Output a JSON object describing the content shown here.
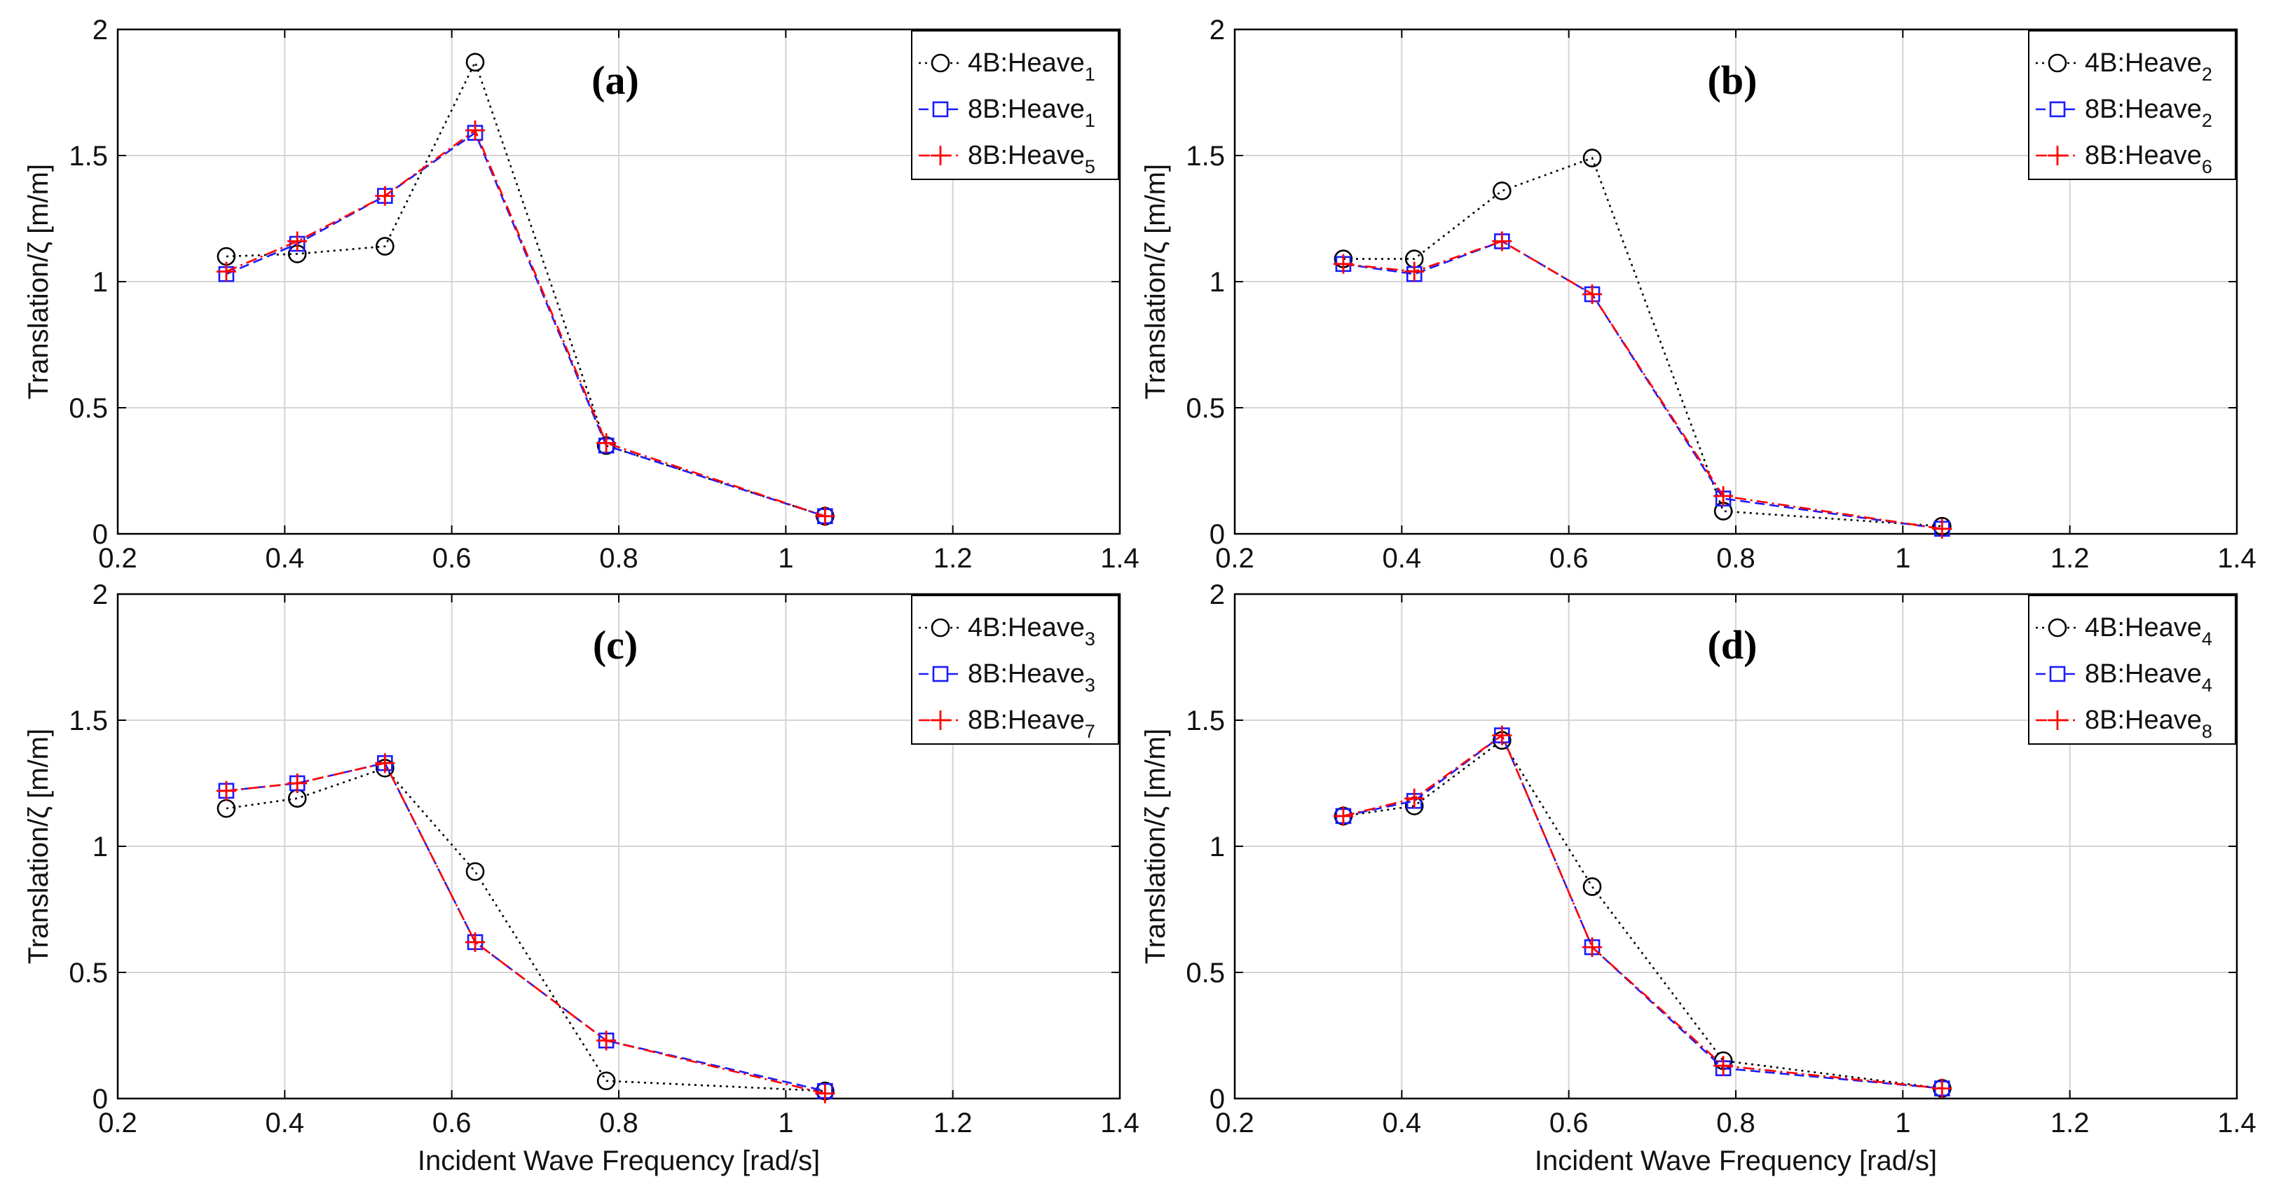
{
  "chart_data": [
    {
      "type": "line",
      "panel_label": "(a)",
      "xlabel": "",
      "ylabel": "Translation/ζ [m/m]",
      "xlim": [
        0.2,
        1.4
      ],
      "ylim": [
        0,
        2
      ],
      "xticks": [
        "0.2",
        "0.4",
        "0.6",
        "0.8",
        "1",
        "1.2",
        "1.4"
      ],
      "yticks": [
        "0",
        "0.5",
        "1",
        "1.5",
        "2"
      ],
      "grid": true,
      "legend_position": "top-right",
      "x": [
        0.33,
        0.415,
        0.52,
        0.628,
        0.785,
        1.047
      ],
      "series": [
        {
          "name": "4B:Heave",
          "sub": "1",
          "color": "#000000",
          "marker": "circle",
          "linestyle": "dotted",
          "values": [
            1.1,
            1.11,
            1.14,
            1.87,
            0.35,
            0.07
          ]
        },
        {
          "name": "8B:Heave",
          "sub": "1",
          "color": "#1a1aff",
          "marker": "square",
          "linestyle": "dashed",
          "values": [
            1.03,
            1.15,
            1.34,
            1.59,
            0.35,
            0.07
          ]
        },
        {
          "name": "8B:Heave",
          "sub": "5",
          "color": "#ff0000",
          "marker": "plus",
          "linestyle": "dashdot",
          "values": [
            1.04,
            1.16,
            1.34,
            1.6,
            0.36,
            0.07
          ]
        }
      ]
    },
    {
      "type": "line",
      "panel_label": "(b)",
      "xlabel": "",
      "ylabel": "Translation/ζ [m/m]",
      "xlim": [
        0.2,
        1.4
      ],
      "ylim": [
        0,
        2
      ],
      "xticks": [
        "0.2",
        "0.4",
        "0.6",
        "0.8",
        "1",
        "1.2",
        "1.4"
      ],
      "yticks": [
        "0",
        "0.5",
        "1",
        "1.5",
        "2"
      ],
      "grid": true,
      "legend_position": "top-right",
      "x": [
        0.33,
        0.415,
        0.52,
        0.628,
        0.785,
        1.047
      ],
      "series": [
        {
          "name": "4B:Heave",
          "sub": "2",
          "color": "#000000",
          "marker": "circle",
          "linestyle": "dotted",
          "values": [
            1.09,
            1.09,
            1.36,
            1.49,
            0.09,
            0.03
          ]
        },
        {
          "name": "8B:Heave",
          "sub": "2",
          "color": "#1a1aff",
          "marker": "square",
          "linestyle": "dashed",
          "values": [
            1.07,
            1.03,
            1.16,
            0.95,
            0.14,
            0.02
          ]
        },
        {
          "name": "8B:Heave",
          "sub": "6",
          "color": "#ff0000",
          "marker": "plus",
          "linestyle": "dashdot",
          "values": [
            1.07,
            1.04,
            1.16,
            0.95,
            0.15,
            0.02
          ]
        }
      ]
    },
    {
      "type": "line",
      "panel_label": "(c)",
      "xlabel": "Incident Wave Frequency [rad/s]",
      "ylabel": "Translation/ζ [m/m]",
      "xlim": [
        0.2,
        1.4
      ],
      "ylim": [
        0,
        2
      ],
      "xticks": [
        "0.2",
        "0.4",
        "0.6",
        "0.8",
        "1",
        "1.2",
        "1.4"
      ],
      "yticks": [
        "0",
        "0.5",
        "1",
        "1.5",
        "2"
      ],
      "grid": true,
      "legend_position": "top-right",
      "x": [
        0.33,
        0.415,
        0.52,
        0.628,
        0.785,
        1.047
      ],
      "series": [
        {
          "name": "4B:Heave",
          "sub": "3",
          "color": "#000000",
          "marker": "circle",
          "linestyle": "dotted",
          "values": [
            1.15,
            1.19,
            1.31,
            0.9,
            0.07,
            0.03
          ]
        },
        {
          "name": "8B:Heave",
          "sub": "3",
          "color": "#1a1aff",
          "marker": "square",
          "linestyle": "dashed",
          "values": [
            1.22,
            1.25,
            1.33,
            0.62,
            0.23,
            0.03
          ]
        },
        {
          "name": "8B:Heave",
          "sub": "7",
          "color": "#ff0000",
          "marker": "plus",
          "linestyle": "dashdot",
          "values": [
            1.22,
            1.25,
            1.33,
            0.62,
            0.23,
            0.02
          ]
        }
      ]
    },
    {
      "type": "line",
      "panel_label": "(d)",
      "xlabel": "Incident Wave Frequency [rad/s]",
      "ylabel": "Translation/ζ [m/m]",
      "xlim": [
        0.2,
        1.4
      ],
      "ylim": [
        0,
        2
      ],
      "xticks": [
        "0.2",
        "0.4",
        "0.6",
        "0.8",
        "1",
        "1.2",
        "1.4"
      ],
      "yticks": [
        "0",
        "0.5",
        "1",
        "1.5",
        "2"
      ],
      "grid": true,
      "legend_position": "top-right",
      "x": [
        0.33,
        0.415,
        0.52,
        0.628,
        0.785,
        1.047
      ],
      "series": [
        {
          "name": "4B:Heave",
          "sub": "4",
          "color": "#000000",
          "marker": "circle",
          "linestyle": "dotted",
          "values": [
            1.12,
            1.16,
            1.42,
            0.84,
            0.15,
            0.04
          ]
        },
        {
          "name": "8B:Heave",
          "sub": "4",
          "color": "#1a1aff",
          "marker": "square",
          "linestyle": "dashed",
          "values": [
            1.12,
            1.18,
            1.44,
            0.6,
            0.12,
            0.04
          ]
        },
        {
          "name": "8B:Heave",
          "sub": "8",
          "color": "#ff0000",
          "marker": "plus",
          "linestyle": "dashdot",
          "values": [
            1.12,
            1.19,
            1.44,
            0.6,
            0.13,
            0.04
          ]
        }
      ]
    }
  ]
}
